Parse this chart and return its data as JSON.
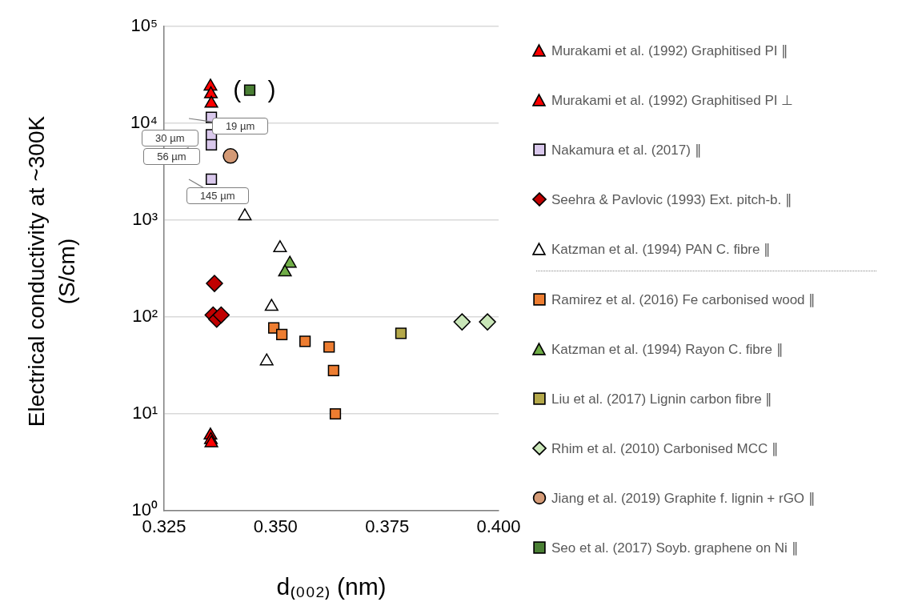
{
  "chart_data": {
    "type": "scatter",
    "xlabel": "d₍₀₀₂₎ (nm)",
    "ylabel": "Electrical conductivity at ~300K (S/cm)",
    "log": "y",
    "grid": "y",
    "legend": "right",
    "xlim": [
      0.325,
      0.4
    ],
    "xticks": [
      {
        "value": 0.325,
        "label": "0.325"
      },
      {
        "value": 0.35,
        "label": "0.350"
      },
      {
        "value": 0.375,
        "label": "0.375"
      },
      {
        "value": 0.4,
        "label": "0.400"
      }
    ],
    "ylim": [
      1,
      100000
    ],
    "yticks": [
      {
        "value": 1,
        "label": "10⁰"
      },
      {
        "value": 10,
        "label": "10¹"
      },
      {
        "value": 100,
        "label": "10²"
      },
      {
        "value": 1000,
        "label": "10³"
      },
      {
        "value": 10000,
        "label": "10⁴"
      },
      {
        "value": 100000,
        "label": "10⁵"
      }
    ],
    "series": [
      {
        "name": "Murakami et al. (1992) Graphitised PI ∥",
        "color": "#ff0000",
        "marker": "triangle",
        "x": [
          0.3354,
          0.3355,
          0.3356
        ],
        "values": [
          24000,
          20000,
          16000
        ]
      },
      {
        "name": "Murakami et al. (1992) Graphitised PI ⊥",
        "color": "#ff0000",
        "marker": "triangle",
        "x": [
          0.3354,
          0.3355,
          0.3356
        ],
        "values": [
          6,
          5.4,
          5
        ]
      },
      {
        "name": "Nakamura et al. (2017) ∥",
        "color": "#d9c8ec",
        "marker": "square",
        "x": [
          0.3356,
          0.3356,
          0.3356,
          0.3356
        ],
        "values": [
          11500,
          7600,
          6000,
          2650
        ]
      },
      {
        "name": "Seehra & Pavlovic (1993) Ext. pitch-b. ∥",
        "color": "#c00000",
        "marker": "diamond",
        "x": [
          0.3363,
          0.336,
          0.3368,
          0.3378
        ],
        "values": [
          222,
          105,
          95,
          105
        ]
      },
      {
        "name": "Katzman et al. (1994) PAN C. fibre ∥",
        "color": "#ffffff",
        "marker": "triangle",
        "x": [
          0.3431,
          0.351,
          0.3491,
          0.348
        ],
        "values": [
          1100,
          515,
          128,
          35
        ]
      },
      {
        "name": "Ramirez et al. (2016) Fe carbonised wood ∥",
        "color": "#ed7d31",
        "marker": "square",
        "x": [
          0.3496,
          0.3514,
          0.3566,
          0.362,
          0.363,
          0.3634
        ],
        "values": [
          77,
          66,
          56,
          49,
          28,
          10
        ]
      },
      {
        "name": "Katzman et al. (1994) Rayon C. fibre ∥",
        "color": "#70ad47",
        "marker": "triangle",
        "x": [
          0.3532,
          0.3521
        ],
        "values": [
          357,
          290
        ]
      },
      {
        "name": "Liu et al. (2017) Lignin carbon fibre ∥",
        "color": "#b4a84a",
        "marker": "square",
        "x": [
          0.3781
        ],
        "values": [
          68
        ]
      },
      {
        "name": "Rhim et al. (2010) Carbonised MCC ∥",
        "color": "#c9e6b8",
        "marker": "diamond",
        "x": [
          0.3918,
          0.3975
        ],
        "values": [
          89,
          89
        ]
      },
      {
        "name": "Jiang et al. (2019) Graphite f. lignin + rGO ∥",
        "color": "#d49a76",
        "marker": "circle",
        "x": [
          0.3399
        ],
        "values": [
          4600
        ]
      },
      {
        "name": "Seo et al. (2017) Soyb. graphene on Ni ∥",
        "color": "#4a7f34",
        "marker": "square",
        "x": [
          0.3442
        ],
        "values": [
          22000
        ]
      }
    ],
    "annotations": [
      "19 µm",
      "30 µm",
      "56 µm",
      "145 µm",
      "(    )"
    ]
  }
}
